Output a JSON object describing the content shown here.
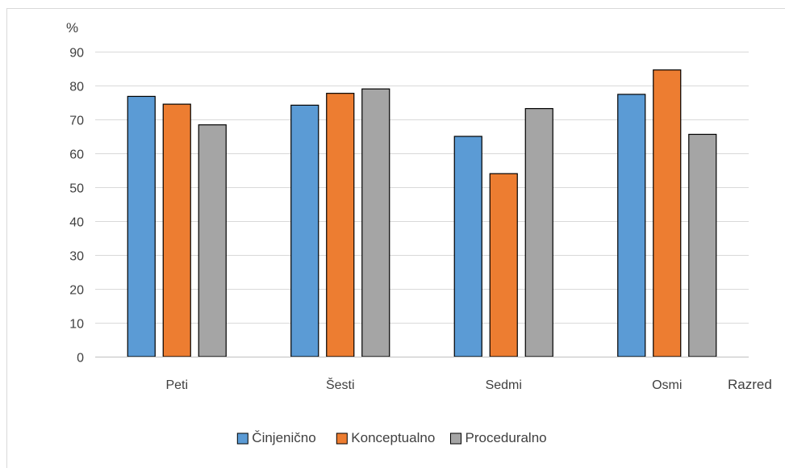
{
  "chart_data": {
    "type": "bar",
    "ylabel": "%",
    "xlabel": "Razred",
    "ylim": [
      0,
      90
    ],
    "yticks": [
      0,
      10,
      20,
      30,
      40,
      50,
      60,
      70,
      80,
      90
    ],
    "grid": true,
    "legend_position": "bottom",
    "categories": [
      "Peti",
      "Šesti",
      "Sedmi",
      "Osmi"
    ],
    "series": [
      {
        "name": "Činjenično",
        "color": "#5B9BD5",
        "values": [
          76.8,
          74.2,
          65.0,
          77.4
        ]
      },
      {
        "name": "Konceptualno",
        "color": "#ED7D31",
        "values": [
          74.5,
          77.7,
          54.0,
          84.6
        ]
      },
      {
        "name": "Proceduralno",
        "color": "#A5A5A5",
        "values": [
          68.4,
          79.0,
          73.2,
          65.6
        ]
      }
    ]
  }
}
